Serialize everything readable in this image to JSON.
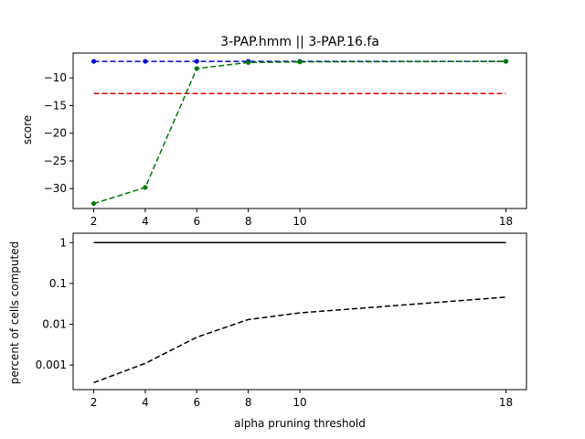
{
  "chart_data": [
    {
      "type": "line",
      "title": "3-PAP.hmm || 3-PAP.16.fa",
      "xlabel": "",
      "ylabel": "score",
      "x": [
        2,
        4,
        6,
        8,
        10,
        18
      ],
      "xlim": [
        1.2,
        18.8
      ],
      "ylim": [
        -33.6,
        -5.5
      ],
      "yticks": [
        -10,
        -15,
        -20,
        -25,
        -30
      ],
      "grid": false,
      "series": [
        {
          "color": "#0000cc",
          "linestyle": "dashed",
          "marker": "dot",
          "x": [
            2,
            4,
            6,
            8,
            10,
            18
          ],
          "values": [
            -7,
            -7,
            -7,
            -7,
            -7,
            -7
          ]
        },
        {
          "color": "#dd0000",
          "linestyle": "dashed",
          "marker": "none",
          "x": [
            2,
            18
          ],
          "values": [
            -12.8,
            -12.8
          ]
        },
        {
          "color": "#007700",
          "linestyle": "dashed",
          "marker": "dot",
          "x": [
            2,
            4,
            6,
            8,
            10,
            18
          ],
          "values": [
            -32.7,
            -29.8,
            -8.3,
            -7.2,
            -7.1,
            -7.0
          ]
        }
      ]
    },
    {
      "type": "line",
      "title": "",
      "xlabel": "alpha pruning threshold",
      "ylabel": "percent of cells computed",
      "x": [
        2,
        4,
        6,
        8,
        10,
        18
      ],
      "xlim": [
        1.2,
        18.8
      ],
      "yscale": "log",
      "ylim": [
        0.00025,
        1.7
      ],
      "yticks": [
        1,
        0.1,
        0.01,
        0.001
      ],
      "ytick_labels": [
        "1",
        "0.1",
        "0.01",
        "0.001"
      ],
      "grid": false,
      "series": [
        {
          "color": "#000000",
          "linestyle": "solid",
          "marker": "none",
          "x": [
            2,
            18
          ],
          "values": [
            1,
            1
          ]
        },
        {
          "color": "#000000",
          "linestyle": "dashed",
          "marker": "none",
          "x": [
            2,
            4,
            6,
            8,
            10,
            18
          ],
          "values": [
            0.00037,
            0.0011,
            0.0048,
            0.013,
            0.019,
            0.046
          ]
        }
      ]
    }
  ]
}
